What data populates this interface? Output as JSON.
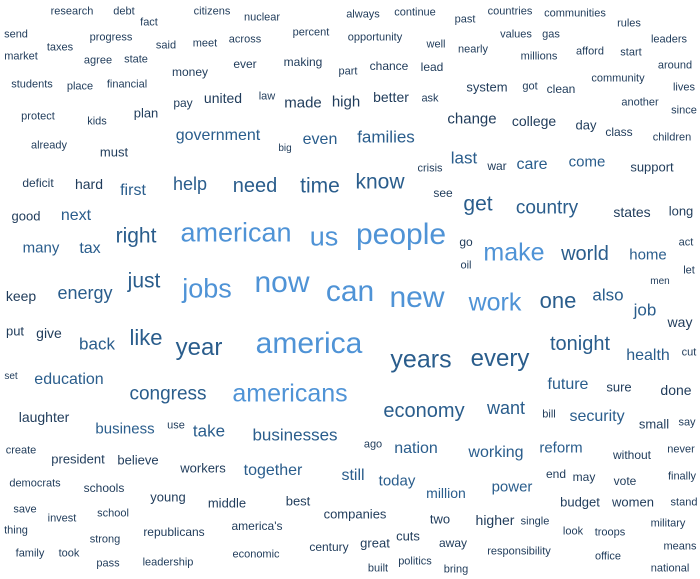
{
  "colors": {
    "background": "#ffffff",
    "text_dark": "#1f3b5a",
    "text_mid": "#2a5d8c",
    "text_light": "#4f93d6"
  },
  "words": [
    {
      "text": "research",
      "weight": 1
    },
    {
      "text": "debt",
      "weight": 1
    },
    {
      "text": "fact",
      "weight": 1
    },
    {
      "text": "citizens",
      "weight": 1
    },
    {
      "text": "nuclear",
      "weight": 1
    },
    {
      "text": "always",
      "weight": 1
    },
    {
      "text": "continue",
      "weight": 1
    },
    {
      "text": "past",
      "weight": 1
    },
    {
      "text": "countries",
      "weight": 1
    },
    {
      "text": "communities",
      "weight": 1
    },
    {
      "text": "rules",
      "weight": 1
    },
    {
      "text": "send",
      "weight": 1
    },
    {
      "text": "progress",
      "weight": 1
    },
    {
      "text": "percent",
      "weight": 1
    },
    {
      "text": "opportunity",
      "weight": 1
    },
    {
      "text": "values",
      "weight": 1
    },
    {
      "text": "gas",
      "weight": 1
    },
    {
      "text": "leaders",
      "weight": 1
    },
    {
      "text": "taxes",
      "weight": 1
    },
    {
      "text": "said",
      "weight": 1
    },
    {
      "text": "meet",
      "weight": 1
    },
    {
      "text": "across",
      "weight": 1
    },
    {
      "text": "well",
      "weight": 1
    },
    {
      "text": "nearly",
      "weight": 1
    },
    {
      "text": "afford",
      "weight": 1
    },
    {
      "text": "start",
      "weight": 1
    },
    {
      "text": "market",
      "weight": 1
    },
    {
      "text": "agree",
      "weight": 1
    },
    {
      "text": "state",
      "weight": 1
    },
    {
      "text": "ever",
      "weight": 1
    },
    {
      "text": "making",
      "weight": 1
    },
    {
      "text": "millions",
      "weight": 1
    },
    {
      "text": "around",
      "weight": 1
    },
    {
      "text": "money",
      "weight": 1
    },
    {
      "text": "part",
      "weight": 1
    },
    {
      "text": "chance",
      "weight": 1
    },
    {
      "text": "lead",
      "weight": 1
    },
    {
      "text": "community",
      "weight": 1
    },
    {
      "text": "students",
      "weight": 1
    },
    {
      "text": "place",
      "weight": 1
    },
    {
      "text": "financial",
      "weight": 1
    },
    {
      "text": "system",
      "weight": 2
    },
    {
      "text": "got",
      "weight": 1
    },
    {
      "text": "clean",
      "weight": 1
    },
    {
      "text": "lives",
      "weight": 1
    },
    {
      "text": "pay",
      "weight": 1
    },
    {
      "text": "united",
      "weight": 2
    },
    {
      "text": "law",
      "weight": 1
    },
    {
      "text": "made",
      "weight": 2
    },
    {
      "text": "high",
      "weight": 2
    },
    {
      "text": "better",
      "weight": 2
    },
    {
      "text": "ask",
      "weight": 1
    },
    {
      "text": "another",
      "weight": 1
    },
    {
      "text": "since",
      "weight": 1
    },
    {
      "text": "protect",
      "weight": 1
    },
    {
      "text": "kids",
      "weight": 1
    },
    {
      "text": "plan",
      "weight": 2
    },
    {
      "text": "change",
      "weight": 2
    },
    {
      "text": "college",
      "weight": 2
    },
    {
      "text": "day",
      "weight": 2
    },
    {
      "text": "class",
      "weight": 1
    },
    {
      "text": "children",
      "weight": 1
    },
    {
      "text": "already",
      "weight": 1
    },
    {
      "text": "must",
      "weight": 2
    },
    {
      "text": "government",
      "weight": 3
    },
    {
      "text": "big",
      "weight": 1
    },
    {
      "text": "even",
      "weight": 3
    },
    {
      "text": "families",
      "weight": 3
    },
    {
      "text": "last",
      "weight": 3
    },
    {
      "text": "war",
      "weight": 1
    },
    {
      "text": "care",
      "weight": 3
    },
    {
      "text": "come",
      "weight": 3
    },
    {
      "text": "support",
      "weight": 2
    },
    {
      "text": "crisis",
      "weight": 1
    },
    {
      "text": "deficit",
      "weight": 1
    },
    {
      "text": "hard",
      "weight": 2
    },
    {
      "text": "first",
      "weight": 3
    },
    {
      "text": "help",
      "weight": 4
    },
    {
      "text": "need",
      "weight": 4
    },
    {
      "text": "time",
      "weight": 5
    },
    {
      "text": "know",
      "weight": 5
    },
    {
      "text": "see",
      "weight": 1
    },
    {
      "text": "get",
      "weight": 5
    },
    {
      "text": "country",
      "weight": 4
    },
    {
      "text": "states",
      "weight": 2
    },
    {
      "text": "long",
      "weight": 2
    },
    {
      "text": "good",
      "weight": 2
    },
    {
      "text": "next",
      "weight": 3
    },
    {
      "text": "right",
      "weight": 4
    },
    {
      "text": "american",
      "weight": 6
    },
    {
      "text": "us",
      "weight": 6
    },
    {
      "text": "people",
      "weight": 7
    },
    {
      "text": "go",
      "weight": 1
    },
    {
      "text": "make",
      "weight": 6
    },
    {
      "text": "world",
      "weight": 4
    },
    {
      "text": "home",
      "weight": 3
    },
    {
      "text": "act",
      "weight": 1
    },
    {
      "text": "many",
      "weight": 3
    },
    {
      "text": "tax",
      "weight": 3
    },
    {
      "text": "oil",
      "weight": 1
    },
    {
      "text": "let",
      "weight": 1
    },
    {
      "text": "men",
      "weight": 1
    },
    {
      "text": "just",
      "weight": 4
    },
    {
      "text": "jobs",
      "weight": 6
    },
    {
      "text": "now",
      "weight": 7
    },
    {
      "text": "can",
      "weight": 7
    },
    {
      "text": "new",
      "weight": 7
    },
    {
      "text": "work",
      "weight": 6
    },
    {
      "text": "one",
      "weight": 5
    },
    {
      "text": "also",
      "weight": 3
    },
    {
      "text": "keep",
      "weight": 2
    },
    {
      "text": "energy",
      "weight": 3
    },
    {
      "text": "job",
      "weight": 3
    },
    {
      "text": "way",
      "weight": 2
    },
    {
      "text": "put",
      "weight": 2
    },
    {
      "text": "give",
      "weight": 2
    },
    {
      "text": "like",
      "weight": 4
    },
    {
      "text": "back",
      "weight": 3
    },
    {
      "text": "year",
      "weight": 5
    },
    {
      "text": "america",
      "weight": 7
    },
    {
      "text": "tonight",
      "weight": 4
    },
    {
      "text": "years",
      "weight": 5
    },
    {
      "text": "every",
      "weight": 5
    },
    {
      "text": "health",
      "weight": 3
    },
    {
      "text": "cut",
      "weight": 1
    },
    {
      "text": "set",
      "weight": 1
    },
    {
      "text": "education",
      "weight": 3
    },
    {
      "text": "congress",
      "weight": 4
    },
    {
      "text": "americans",
      "weight": 6
    },
    {
      "text": "future",
      "weight": 3
    },
    {
      "text": "sure",
      "weight": 2
    },
    {
      "text": "done",
      "weight": 2
    },
    {
      "text": "laughter",
      "weight": 2
    },
    {
      "text": "economy",
      "weight": 4
    },
    {
      "text": "want",
      "weight": 4
    },
    {
      "text": "bill",
      "weight": 1
    },
    {
      "text": "security",
      "weight": 3
    },
    {
      "text": "small",
      "weight": 2
    },
    {
      "text": "say",
      "weight": 1
    },
    {
      "text": "business",
      "weight": 3
    },
    {
      "text": "use",
      "weight": 1
    },
    {
      "text": "take",
      "weight": 3
    },
    {
      "text": "businesses",
      "weight": 4
    },
    {
      "text": "ago",
      "weight": 1
    },
    {
      "text": "nation",
      "weight": 3
    },
    {
      "text": "working",
      "weight": 3
    },
    {
      "text": "reform",
      "weight": 3
    },
    {
      "text": "without",
      "weight": 2
    },
    {
      "text": "never",
      "weight": 1
    },
    {
      "text": "create",
      "weight": 1
    },
    {
      "text": "president",
      "weight": 2
    },
    {
      "text": "believe",
      "weight": 2
    },
    {
      "text": "workers",
      "weight": 2
    },
    {
      "text": "together",
      "weight": 3
    },
    {
      "text": "still",
      "weight": 3
    },
    {
      "text": "today",
      "weight": 3
    },
    {
      "text": "end",
      "weight": 2
    },
    {
      "text": "may",
      "weight": 2
    },
    {
      "text": "vote",
      "weight": 2
    },
    {
      "text": "finally",
      "weight": 1
    },
    {
      "text": "democrats",
      "weight": 1
    },
    {
      "text": "schools",
      "weight": 2
    },
    {
      "text": "young",
      "weight": 2
    },
    {
      "text": "power",
      "weight": 3
    },
    {
      "text": "million",
      "weight": 3
    },
    {
      "text": "budget",
      "weight": 2
    },
    {
      "text": "women",
      "weight": 2
    },
    {
      "text": "stand",
      "weight": 1
    },
    {
      "text": "save",
      "weight": 1
    },
    {
      "text": "middle",
      "weight": 2
    },
    {
      "text": "best",
      "weight": 2
    },
    {
      "text": "companies",
      "weight": 2
    },
    {
      "text": "invest",
      "weight": 1
    },
    {
      "text": "school",
      "weight": 1
    },
    {
      "text": "two",
      "weight": 2
    },
    {
      "text": "higher",
      "weight": 2
    },
    {
      "text": "single",
      "weight": 1
    },
    {
      "text": "military",
      "weight": 1
    },
    {
      "text": "thing",
      "weight": 1
    },
    {
      "text": "republicans",
      "weight": 2
    },
    {
      "text": "america's",
      "weight": 2
    },
    {
      "text": "look",
      "weight": 1
    },
    {
      "text": "troops",
      "weight": 1
    },
    {
      "text": "strong",
      "weight": 1
    },
    {
      "text": "cuts",
      "weight": 2
    },
    {
      "text": "great",
      "weight": 2
    },
    {
      "text": "means",
      "weight": 1
    },
    {
      "text": "family",
      "weight": 1
    },
    {
      "text": "took",
      "weight": 1
    },
    {
      "text": "economic",
      "weight": 1
    },
    {
      "text": "century",
      "weight": 2
    },
    {
      "text": "away",
      "weight": 2
    },
    {
      "text": "responsibility",
      "weight": 1
    },
    {
      "text": "office",
      "weight": 1
    },
    {
      "text": "pass",
      "weight": 1
    },
    {
      "text": "leadership",
      "weight": 1
    },
    {
      "text": "built",
      "weight": 1
    },
    {
      "text": "politics",
      "weight": 1
    },
    {
      "text": "bring",
      "weight": 1
    },
    {
      "text": "national",
      "weight": 1
    }
  ]
}
